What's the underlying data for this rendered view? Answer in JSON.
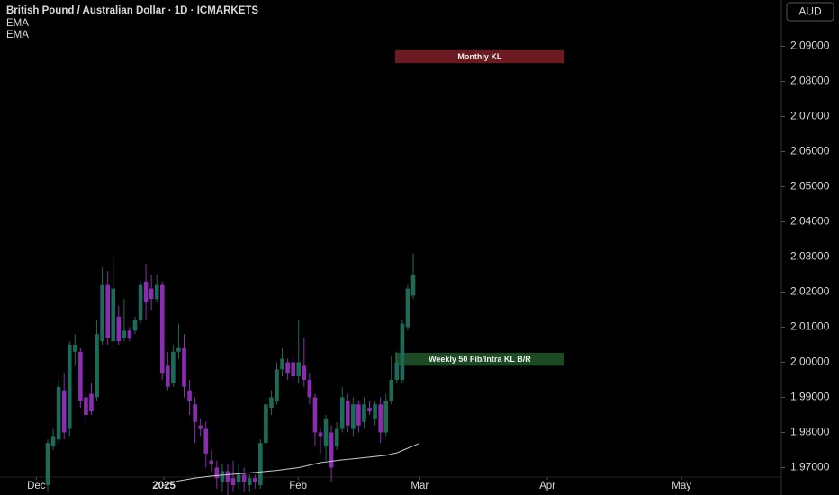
{
  "chart_data": {
    "type": "candlestick",
    "title": "British Pound / Australian Dollar · 1D · ICMARKETS",
    "currency": "AUD",
    "up_color": "#1e6a58",
    "down_color": "#8a2db0",
    "open": [
      1.965,
      1.976,
      1.978,
      1.992,
      1.981,
      2.003,
      2.003,
      1.99,
      1.991,
      1.99,
      2.006,
      2.022,
      2.006,
      2.013,
      2.007,
      2.009,
      2.009,
      2.012,
      2.023,
      2.021,
      2.018,
      2.022,
      1.999,
      1.994,
      2.003,
      2.004,
      1.992,
      1.988,
      1.982,
      1.981,
      1.972,
      1.97,
      1.966,
      1.969,
      1.967,
      1.966,
      1.968,
      1.965,
      1.967,
      1.965,
      1.977,
      1.987,
      1.989,
      1.998,
      2.0,
      2.0,
      1.996,
      1.999,
      1.995,
      1.99,
      1.98,
      1.976,
      1.98,
      1.976,
      1.981,
      1.989,
      1.981,
      1.988,
      1.983,
      1.987,
      1.984,
      1.988,
      1.98,
      1.989,
      1.995,
      1.995,
      2.01,
      2.019
    ],
    "high": [
      1.978,
      1.981,
      1.995,
      1.997,
      2.006,
      2.008,
      2.004,
      1.992,
      1.994,
      2.012,
      2.027,
      2.026,
      2.03,
      2.016,
      2.018,
      2.01,
      2.013,
      2.023,
      2.028,
      2.025,
      2.025,
      2.023,
      2.003,
      2.005,
      2.011,
      2.008,
      1.995,
      1.99,
      1.984,
      1.983,
      1.975,
      1.972,
      1.971,
      1.971,
      1.972,
      1.971,
      1.97,
      1.968,
      1.968,
      1.978,
      1.99,
      1.992,
      2.0,
      2.004,
      2.001,
      2.002,
      2.012,
      2.007,
      1.997,
      1.991,
      1.981,
      1.985,
      1.982,
      1.983,
      1.993,
      1.991,
      1.99,
      1.989,
      1.99,
      1.989,
      1.989,
      1.99,
      1.991,
      2.002,
      2.003,
      2.012,
      2.022,
      2.031
    ],
    "low": [
      1.963,
      1.975,
      1.977,
      1.978,
      1.979,
      1.999,
      1.987,
      1.982,
      1.985,
      1.989,
      2.005,
      2.005,
      2.004,
      2.005,
      2.006,
      2.006,
      2.008,
      2.011,
      2.012,
      2.015,
      2.017,
      1.995,
      1.992,
      1.993,
      2.001,
      1.99,
      1.985,
      1.977,
      1.979,
      1.97,
      1.969,
      1.964,
      1.963,
      1.962,
      1.963,
      1.964,
      1.963,
      1.963,
      1.964,
      1.964,
      1.976,
      1.985,
      1.988,
      1.996,
      1.995,
      1.995,
      1.994,
      1.993,
      1.988,
      1.976,
      1.974,
      1.972,
      1.966,
      1.975,
      1.98,
      1.98,
      1.979,
      1.98,
      1.981,
      1.985,
      1.982,
      1.977,
      1.979,
      1.988,
      1.994,
      1.994,
      2.009,
      2.018
    ],
    "close": [
      1.977,
      1.979,
      1.993,
      1.98,
      2.005,
      2.005,
      1.989,
      1.985,
      1.986,
      2.008,
      2.022,
      2.007,
      2.021,
      2.006,
      2.009,
      2.007,
      2.012,
      2.022,
      2.017,
      2.018,
      2.022,
      1.997,
      1.993,
      2.003,
      2.004,
      1.993,
      1.989,
      1.983,
      1.981,
      1.974,
      1.971,
      1.967,
      1.969,
      1.966,
      1.965,
      1.968,
      1.966,
      1.967,
      1.966,
      1.977,
      1.988,
      1.99,
      1.998,
      2.001,
      1.997,
      1.996,
      2.0,
      1.995,
      1.99,
      1.98,
      1.979,
      1.984,
      1.97,
      1.981,
      1.99,
      1.982,
      1.988,
      1.982,
      1.988,
      1.986,
      1.988,
      1.98,
      1.989,
      1.995,
      2.0,
      2.011,
      2.021,
      2.025
    ],
    "indicators": [
      {
        "name": "EMA",
        "color": "#c8c8c8",
        "x": [
          21,
          24,
          27,
          30,
          34,
          38,
          42,
          46,
          50,
          54,
          58,
          62,
          64,
          66,
          68
        ],
        "values": [
          1.9648,
          1.9662,
          1.967,
          1.9676,
          1.9681,
          1.9686,
          1.9692,
          1.97,
          1.9714,
          1.9722,
          1.9728,
          1.9735,
          1.9742,
          1.9755,
          1.9768
        ]
      },
      {
        "name": "EMA"
      }
    ],
    "zones": [
      {
        "text": "Monthly KL",
        "color": "#6b1a22",
        "x": [
          63.7,
          94.7
        ],
        "y": [
          2.0852,
          2.0889
        ]
      },
      {
        "text": "Weekly 50 Fib/Intra KL B/R",
        "color": "#1c4a24",
        "x": [
          63.7,
          94.7
        ],
        "y": [
          1.999,
          2.0027
        ]
      }
    ],
    "xlim": [
      -8.75,
      134.5
    ],
    "xticks": [
      {
        "value": -2.1,
        "label": "Dec"
      },
      {
        "value": 21.3,
        "label": "2025"
      },
      {
        "value": 45.9,
        "label": "Feb"
      },
      {
        "value": 68.2,
        "label": "Mar"
      },
      {
        "value": 91.6,
        "label": "Apr"
      },
      {
        "value": 116.2,
        "label": "May"
      }
    ],
    "ylim": [
      1.9673,
      2.1032
    ],
    "yticks": [
      {
        "value": 2.09,
        "label": "2.09000"
      },
      {
        "value": 2.08,
        "label": "2.08000"
      },
      {
        "value": 2.07,
        "label": "2.07000"
      },
      {
        "value": 2.06,
        "label": "2.06000"
      },
      {
        "value": 2.05,
        "label": "2.05000"
      },
      {
        "value": 2.04,
        "label": "2.04000"
      },
      {
        "value": 2.03,
        "label": "2.03000"
      },
      {
        "value": 2.02,
        "label": "2.02000"
      },
      {
        "value": 2.01,
        "label": "2.01000"
      },
      {
        "value": 2.0,
        "label": "2.00000"
      },
      {
        "value": 1.99,
        "label": "1.99000"
      },
      {
        "value": 1.98,
        "label": "1.98000"
      },
      {
        "value": 1.97,
        "label": "1.97000"
      }
    ]
  }
}
